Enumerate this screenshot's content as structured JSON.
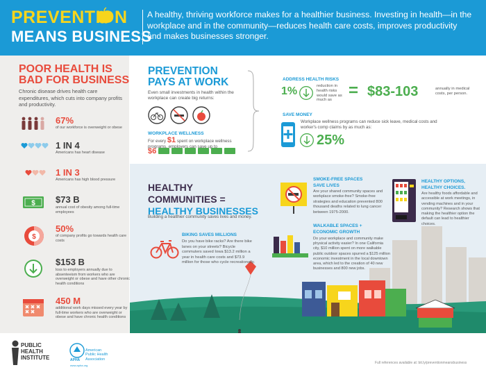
{
  "header": {
    "title_line1": "PREVENTION",
    "title_line2": "MEANS BUSINESS",
    "intro": "A healthy, thriving workforce makes for a healthier business. Investing in health—in the workplace and in the community—reduces health care costs, improves productivity and makes businesses stronger."
  },
  "poor_health": {
    "heading_line1": "POOR HEALTH IS",
    "heading_line2": "BAD FOR BUSINESS",
    "intro": "Chronic disease drives health care expenditures, which cuts into company profits and productivity.",
    "stats": [
      {
        "value": "67%",
        "desc": "of our workforce is overweight or obese"
      },
      {
        "value": "1 IN 4",
        "desc": "Americans has heart disease"
      },
      {
        "value": "1 IN 3",
        "desc": "Americans has high blood pressure"
      },
      {
        "value": "$73 B",
        "desc": "annual cost of obesity among full-time employees"
      },
      {
        "value": "50%",
        "desc": "of company profits go towards health care costs"
      },
      {
        "value": "$153 B",
        "desc": "loss to employers annually due to absenteeism from workers who are overweight or obese and have other chronic health conditions"
      },
      {
        "value": "450 M",
        "desc": "additional work days missed every year by full-time workers who are overweight or obese and have chronic health conditions"
      }
    ]
  },
  "prevention_work": {
    "heading_line1": "PREVENTION",
    "heading_line2": "PAYS AT WORK",
    "intro": "Even small investments in health within the workplace can create big returns:",
    "wellness_heading": "WORKPLACE WELLNESS",
    "wellness_text1": "For every",
    "wellness_invest": "$1",
    "wellness_text2": "spent on workplace wellness programs, employers can save up to",
    "wellness_return": "$6",
    "risks_heading": "ADDRESS HEALTH RISKS",
    "risks_percent": "1%",
    "risks_text": "reduction in health risks would save as much as",
    "risks_equals": "=",
    "risks_amount": "$83-103",
    "risks_amount_desc": "annually in medical costs, per person.",
    "money_heading": "SAVE MONEY",
    "money_text": "Workplace wellness programs can reduce sick leave, medical costs and worker's comp claims by as much as:",
    "money_percent": "25%"
  },
  "communities": {
    "heading_line1": "HEALTHY",
    "heading_line1b": "COMMUNITIES =",
    "heading_line2": "HEALTHY BUSINESSES",
    "intro": "Building a healthier community saves lives and money.",
    "biking_heading": "BIKING SAVES MILLIONS",
    "biking_text": "Do you have bike racks? Are there bike lanes on your streets? Bicycle commuters saved Iowa $13.2 million a year in health care costs and $73.9 million for those who cycle recreationally.",
    "smoke_heading_line1": "SMOKE-FREE SPACES",
    "smoke_heading_line2": "SAVE LIVES",
    "smoke_text": "Are your shared community spaces and workplace smoke-free? Smoke-free strategies and education prevented 800 thousand deaths related to lung cancer between 1975-2000.",
    "walk_heading_line1": "WALKABLE SPACES +",
    "walk_heading_line2": "ECONOMIC GROWTH",
    "walk_text": "Do your workplace and community make physical activity easier? In one California city, $10 million spent on more walkable public outdoor spaces spurred a $125 million economic investment in the local downtown area, which led to the creation of 40 new businesses and 800 new jobs.",
    "options_heading_line1": "HEALTHY OPTIONS,",
    "options_heading_line2": "HEALTHY CHOICES.",
    "options_text": "Are healthy foods affordable and accessible at work meetings, in vending machines and in your community? Research shows that making the healthier option the default can lead to healthier choices."
  },
  "footer": {
    "phi_line1": "PUBLIC",
    "phi_line2": "HEALTH",
    "phi_line3": "INSTITUTE",
    "apha_line1": "American",
    "apha_line2": "Public Health",
    "apha_line3": "Association",
    "apha_abbr": "APHA",
    "apha_url": "www.apha.org",
    "references": "Full references available at: bit.ly/preventionmeansbusiness"
  },
  "colors": {
    "blue": "#1b9ad6",
    "yellow": "#f7d51c",
    "red": "#e84b3c",
    "green": "#4cae4f",
    "purple": "#3b2b4a"
  }
}
